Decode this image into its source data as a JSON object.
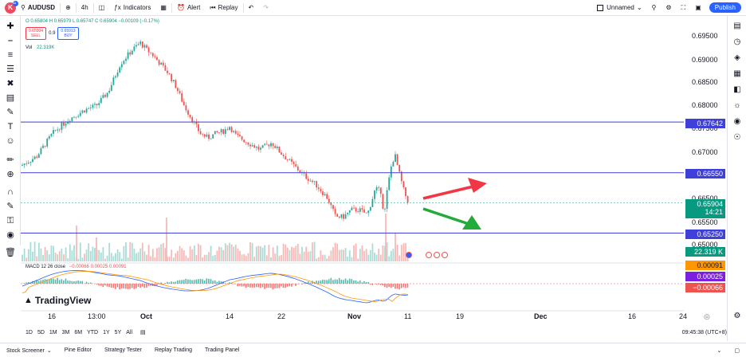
{
  "toolbar": {
    "logo_letter": "K",
    "logo_badge": "11",
    "symbol": "AUDUSD",
    "interval": "4h",
    "indicators": "Indicators",
    "alert": "Alert",
    "replay": "Replay",
    "layout_name": "Unnamed",
    "publish": "Publish"
  },
  "legend": {
    "ohlc": "O 0.65804  H 0.65979  L 0.65747  C 0.65904  −0.00109 (−0.17%)",
    "sell_price": "0.65904",
    "sell_label": "SELL",
    "spread": "0.9",
    "buy_price": "0.65913",
    "buy_label": "BUY",
    "vol_label": "Vol",
    "vol_value": "22.319K",
    "macd_label": "MACD 12 26 close",
    "macd_values": "−0.00066  0.00025  0.00091"
  },
  "price_axis": {
    "ticks": [
      "0.69500",
      "0.69000",
      "0.68500",
      "0.68000",
      "0.67500",
      "0.67000",
      "0.66500",
      "0.65500",
      "0.65000"
    ],
    "line_label_1": "0.67642",
    "line_label_2": "0.66550",
    "line_label_3": "0.65250",
    "current_price": "0.65904",
    "countdown": "14:21",
    "volume_label": "22.319 K",
    "macd_1": "0.00091",
    "macd_2": "0.00025",
    "macd_3": "−0.00066"
  },
  "time_axis": [
    "16",
    "13:00",
    "Oct",
    "14",
    "22",
    "Nov",
    "11",
    "19",
    "Dec",
    "16",
    "24"
  ],
  "range_buttons": [
    "1D",
    "5D",
    "1M",
    "3M",
    "6M",
    "YTD",
    "1Y",
    "5Y",
    "All"
  ],
  "clock": "09:45:38 (UTC+8)",
  "bottom_tabs": [
    "Stock Screener",
    "Pine Editor",
    "Strategy Tester",
    "Replay Trading",
    "Trading Panel"
  ],
  "watermark": "TradingView",
  "colors": {
    "up": "#26a69a",
    "down": "#ef5350",
    "hline": "#3f3fd9",
    "arrow_up": "#f23645",
    "arrow_down": "#22ab3a",
    "accent": "#2962ff"
  }
}
